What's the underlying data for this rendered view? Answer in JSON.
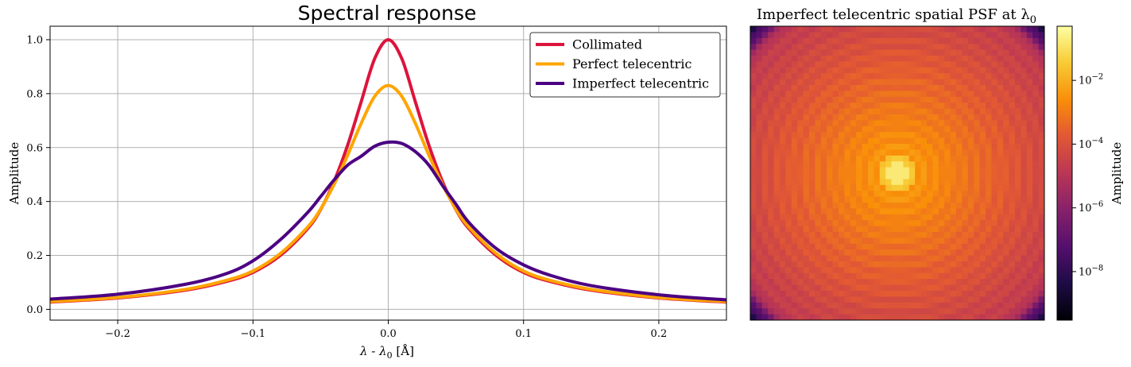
{
  "chart_data": [
    {
      "type": "line",
      "title": "Spectral response",
      "xlabel": "λ - λ",
      "xlabel_sub": "0",
      "xlabel_unit": " [Å]",
      "ylabel": "Amplitude",
      "xlim": [
        -0.25,
        0.25
      ],
      "ylim": [
        -0.04,
        1.05
      ],
      "xticks": [
        -0.2,
        -0.1,
        0.0,
        0.1,
        0.2
      ],
      "xtick_labels": [
        "−0.2",
        "−0.1",
        "0.0",
        "0.1",
        "0.2"
      ],
      "yticks": [
        0.0,
        0.2,
        0.4,
        0.6,
        0.8,
        1.0
      ],
      "ytick_labels": [
        "0.0",
        "0.2",
        "0.4",
        "0.6",
        "0.8",
        "1.0"
      ],
      "grid": true,
      "legend_position": "top-right",
      "series": [
        {
          "name": "Collimated",
          "color": "#dc143c",
          "points": [
            [
              -0.25,
              0.027
            ],
            [
              -0.2,
              0.042
            ],
            [
              -0.15,
              0.071
            ],
            [
              -0.12,
              0.103
            ],
            [
              -0.1,
              0.137
            ],
            [
              -0.08,
              0.199
            ],
            [
              -0.06,
              0.297
            ],
            [
              -0.05,
              0.37
            ],
            [
              -0.04,
              0.475
            ],
            [
              -0.03,
              0.609
            ],
            [
              -0.02,
              0.77
            ],
            [
              -0.01,
              0.93
            ],
            [
              0.0,
              1.0
            ],
            [
              0.01,
              0.93
            ],
            [
              0.02,
              0.77
            ],
            [
              0.03,
              0.609
            ],
            [
              0.04,
              0.475
            ],
            [
              0.05,
              0.37
            ],
            [
              0.06,
              0.297
            ],
            [
              0.08,
              0.199
            ],
            [
              0.1,
              0.137
            ],
            [
              0.12,
              0.103
            ],
            [
              0.15,
              0.071
            ],
            [
              0.2,
              0.042
            ],
            [
              0.25,
              0.027
            ]
          ]
        },
        {
          "name": "Perfect telecentric",
          "color": "#ffa500",
          "points": [
            [
              -0.25,
              0.029
            ],
            [
              -0.2,
              0.044
            ],
            [
              -0.15,
              0.074
            ],
            [
              -0.12,
              0.107
            ],
            [
              -0.1,
              0.142
            ],
            [
              -0.08,
              0.206
            ],
            [
              -0.06,
              0.303
            ],
            [
              -0.05,
              0.372
            ],
            [
              -0.04,
              0.464
            ],
            [
              -0.03,
              0.572
            ],
            [
              -0.02,
              0.69
            ],
            [
              -0.01,
              0.79
            ],
            [
              0.0,
              0.83
            ],
            [
              0.01,
              0.79
            ],
            [
              0.02,
              0.69
            ],
            [
              0.03,
              0.572
            ],
            [
              0.04,
              0.464
            ],
            [
              0.05,
              0.372
            ],
            [
              0.06,
              0.303
            ],
            [
              0.08,
              0.206
            ],
            [
              0.1,
              0.142
            ],
            [
              0.12,
              0.107
            ],
            [
              0.15,
              0.074
            ],
            [
              0.2,
              0.044
            ],
            [
              0.25,
              0.029
            ]
          ]
        },
        {
          "name": "Imperfect telecentric",
          "color": "#4b0082",
          "points": [
            [
              -0.25,
              0.038
            ],
            [
              -0.2,
              0.056
            ],
            [
              -0.15,
              0.093
            ],
            [
              -0.12,
              0.132
            ],
            [
              -0.1,
              0.18
            ],
            [
              -0.08,
              0.257
            ],
            [
              -0.06,
              0.357
            ],
            [
              -0.05,
              0.418
            ],
            [
              -0.04,
              0.48
            ],
            [
              -0.03,
              0.535
            ],
            [
              -0.02,
              0.568
            ],
            [
              -0.01,
              0.605
            ],
            [
              0.0,
              0.62
            ],
            [
              0.01,
              0.615
            ],
            [
              0.02,
              0.585
            ],
            [
              0.03,
              0.535
            ],
            [
              0.04,
              0.46
            ],
            [
              0.05,
              0.39
            ],
            [
              0.06,
              0.32
            ],
            [
              0.08,
              0.225
            ],
            [
              0.1,
              0.165
            ],
            [
              0.12,
              0.126
            ],
            [
              0.15,
              0.088
            ],
            [
              0.2,
              0.054
            ],
            [
              0.25,
              0.035
            ]
          ]
        }
      ]
    },
    {
      "type": "heatmap",
      "title": "Imperfect telecentric spatial PSF at λ",
      "title_sub": "0",
      "colormap": "inferno",
      "scale": "log",
      "grid_size": [
        50,
        50
      ],
      "color_range": [
        3e-10,
        0.5
      ],
      "colorbar_label": "Amplitude",
      "colorbar_ticks": [
        0.01,
        0.0001,
        1e-06,
        1e-08
      ],
      "colorbar_tick_labels": [
        {
          "base": "10",
          "exp": "−2"
        },
        {
          "base": "10",
          "exp": "−4"
        },
        {
          "base": "10",
          "exp": "−6"
        },
        {
          "base": "10",
          "exp": "−8"
        }
      ],
      "ring_count": 11,
      "peak_offset": [
        0.5,
        0.5
      ]
    }
  ]
}
